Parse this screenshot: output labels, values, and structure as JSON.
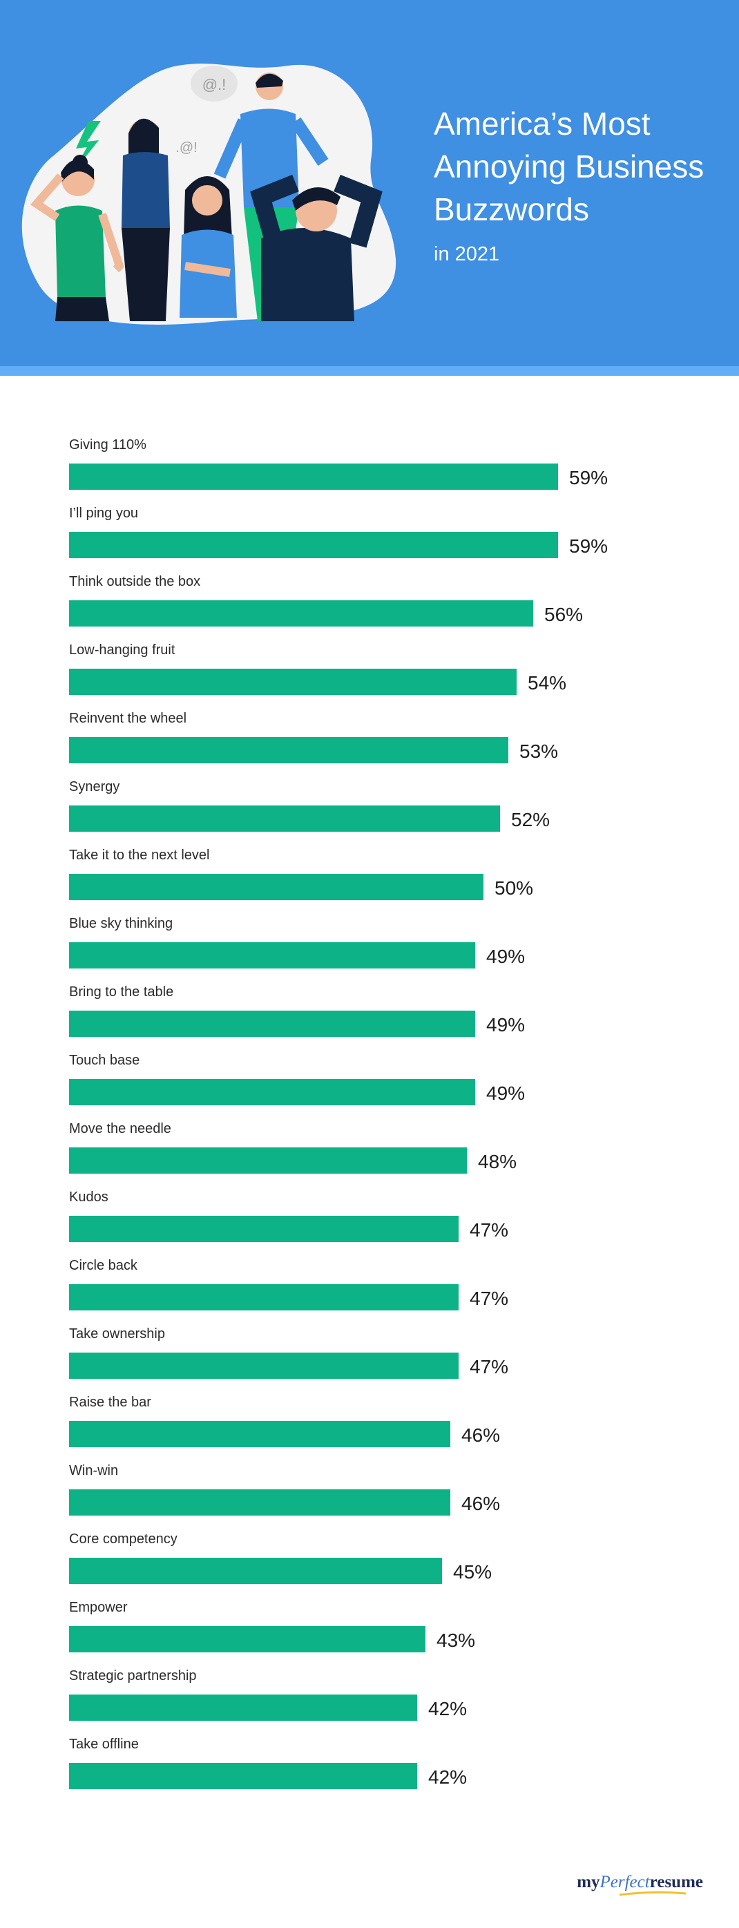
{
  "header": {
    "title": "America’s Most Annoying Business Buzzwords",
    "subtitle": "in 2021",
    "bubble1": "@.!",
    "bubble2": ".@!"
  },
  "colors": {
    "header_bg": "#3f8fe2",
    "stripe": "#62aef6",
    "bar": "#0db386"
  },
  "chart_data": {
    "type": "bar",
    "orientation": "horizontal",
    "title": "America’s Most Annoying Business Buzzwords",
    "subtitle": "in 2021",
    "value_suffix": "%",
    "categories": [
      "Giving 110%",
      "I’ll ping you",
      "Think outside the box",
      "Low-hanging fruit",
      "Reinvent the wheel",
      "Synergy",
      "Take it to the next level",
      "Blue sky thinking",
      "Bring to the table",
      "Touch base",
      "Move the needle",
      "Kudos",
      "Circle back",
      "Take ownership",
      "Raise the bar",
      "Win-win",
      "Core competency",
      "Empower",
      "Strategic partnership",
      "Take offline"
    ],
    "values": [
      59,
      59,
      56,
      54,
      53,
      52,
      50,
      49,
      49,
      49,
      48,
      47,
      47,
      47,
      46,
      46,
      45,
      43,
      42,
      42
    ],
    "xlim": [
      0,
      100
    ]
  },
  "footer": {
    "logo_my": "my",
    "logo_perfect": "Perfect",
    "logo_resume": "resume"
  }
}
